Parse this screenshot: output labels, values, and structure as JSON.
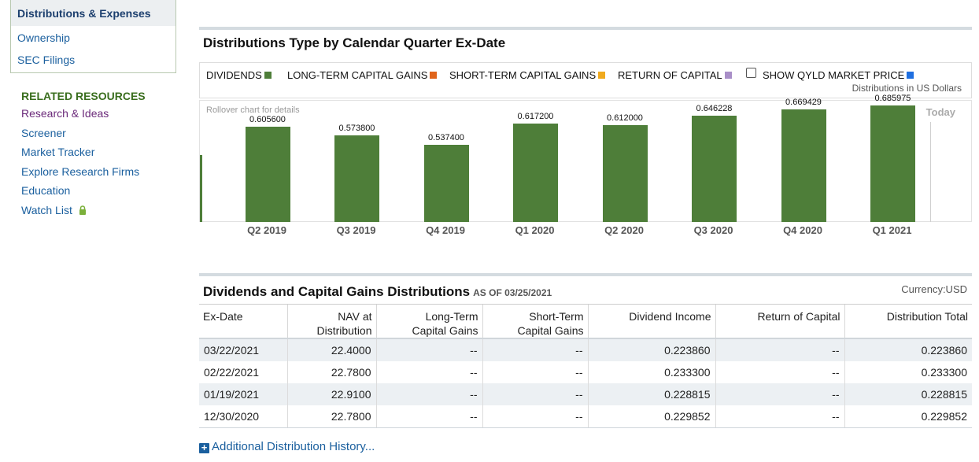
{
  "sidebar": {
    "nav": [
      "Distributions & Expenses",
      "Ownership",
      "SEC Filings"
    ],
    "related_title": "RELATED RESOURCES",
    "related": [
      "Research & Ideas",
      "Screener",
      "Market Tracker",
      "Explore Research Firms",
      "Education",
      "Watch List"
    ]
  },
  "chart": {
    "title": "Distributions Type by Calendar Quarter Ex-Date",
    "legend": {
      "dividends": "DIVIDENDS",
      "ltcg": "LONG-TERM CAPITAL GAINS",
      "stcg": "SHORT-TERM CAPITAL GAINS",
      "roc": "RETURN OF CAPITAL",
      "market_price": "SHOW QYLD MARKET PRICE",
      "note": "Distributions in US Dollars"
    },
    "rollover_hint": "Rollover chart for details",
    "today_label": "Today",
    "colors": {
      "dividends": "#4e7e39",
      "ltcg": "#e0641b",
      "stcg": "#f0aa1e",
      "roc": "#a98fc8",
      "market_price": "#1f6fe0"
    }
  },
  "chart_data": {
    "type": "bar",
    "categories": [
      "Q2 2019",
      "Q3 2019",
      "Q4 2019",
      "Q1 2020",
      "Q2 2020",
      "Q3 2020",
      "Q4 2020",
      "Q1 2021"
    ],
    "values": [
      0.6056,
      0.5738,
      0.5374,
      0.6172,
      0.612,
      0.646228,
      0.669429,
      0.685975
    ],
    "value_labels": [
      "0.605600",
      "0.573800",
      "0.537400",
      "0.617200",
      "0.612000",
      "0.646228",
      "0.669429",
      "0.685975"
    ],
    "ylim": [
      0.25,
      0.75
    ],
    "title": "Distributions Type by Calendar Quarter Ex-Date",
    "ylabel": "Distributions in US Dollars"
  },
  "table": {
    "title": "Dividends and Capital Gains Distributions",
    "as_of": "AS OF 03/25/2021",
    "currency": "Currency:USD",
    "headers": [
      [
        "Ex-Date"
      ],
      [
        "NAV at",
        "Distribution"
      ],
      [
        "Long-Term",
        "Capital Gains"
      ],
      [
        "Short-Term",
        "Capital Gains"
      ],
      [
        "Dividend Income"
      ],
      [
        "Return of Capital"
      ],
      [
        "Distribution Total"
      ]
    ],
    "rows": [
      [
        "03/22/2021",
        "22.4000",
        "--",
        "--",
        "0.223860",
        "--",
        "0.223860"
      ],
      [
        "02/22/2021",
        "22.7800",
        "--",
        "--",
        "0.233300",
        "--",
        "0.233300"
      ],
      [
        "01/19/2021",
        "22.9100",
        "--",
        "--",
        "0.228815",
        "--",
        "0.228815"
      ],
      [
        "12/30/2020",
        "22.7800",
        "--",
        "--",
        "0.229852",
        "--",
        "0.229852"
      ]
    ],
    "more_link": "Additional Distribution History..."
  }
}
